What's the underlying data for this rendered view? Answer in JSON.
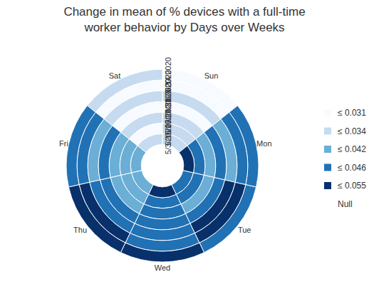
{
  "chart_data": {
    "type": "heatmap",
    "title": "Change in mean of % devices with a full-time worker behavior by Days over Weeks",
    "categories": [
      "Sun",
      "Mon",
      "Tue",
      "Wed",
      "Thu",
      "Fri",
      "Sat"
    ],
    "rings": [
      "5/3/2020",
      "5/10/2020",
      "5/17/2020",
      "5/24/2020",
      "5/31/2020",
      "6/7/2020",
      "6/14/2020"
    ],
    "values": [
      [
        0.033,
        0.05,
        0.044,
        0.05,
        0.04,
        0.039,
        0.033
      ],
      [
        0.032,
        0.044,
        0.045,
        0.045,
        0.041,
        0.04,
        0.03
      ],
      [
        0.033,
        0.04,
        0.04,
        0.044,
        0.04,
        0.041,
        0.033
      ],
      [
        0.03,
        0.044,
        0.045,
        0.045,
        0.044,
        0.043,
        0.03
      ],
      [
        0.032,
        0.038,
        0.05,
        0.046,
        0.045,
        0.041,
        0.033
      ],
      [
        0.03,
        0.045,
        0.05,
        0.045,
        0.05,
        0.044,
        0.03
      ],
      [
        0.03,
        0.045,
        0.045,
        0.052,
        0.052,
        0.045,
        0.034
      ]
    ],
    "color_bins": [
      {
        "max": 0.031,
        "label": "≤ 0.031",
        "color": "#f7fbff"
      },
      {
        "max": 0.034,
        "label": "≤ 0.034",
        "color": "#c6dbef"
      },
      {
        "max": 0.042,
        "label": "≤ 0.042",
        "color": "#6baed6"
      },
      {
        "max": 0.046,
        "label": "≤ 0.046",
        "color": "#2171b5"
      },
      {
        "max": 0.055,
        "label": "≤ 0.055",
        "color": "#08306b"
      }
    ],
    "null_label": "Null"
  }
}
